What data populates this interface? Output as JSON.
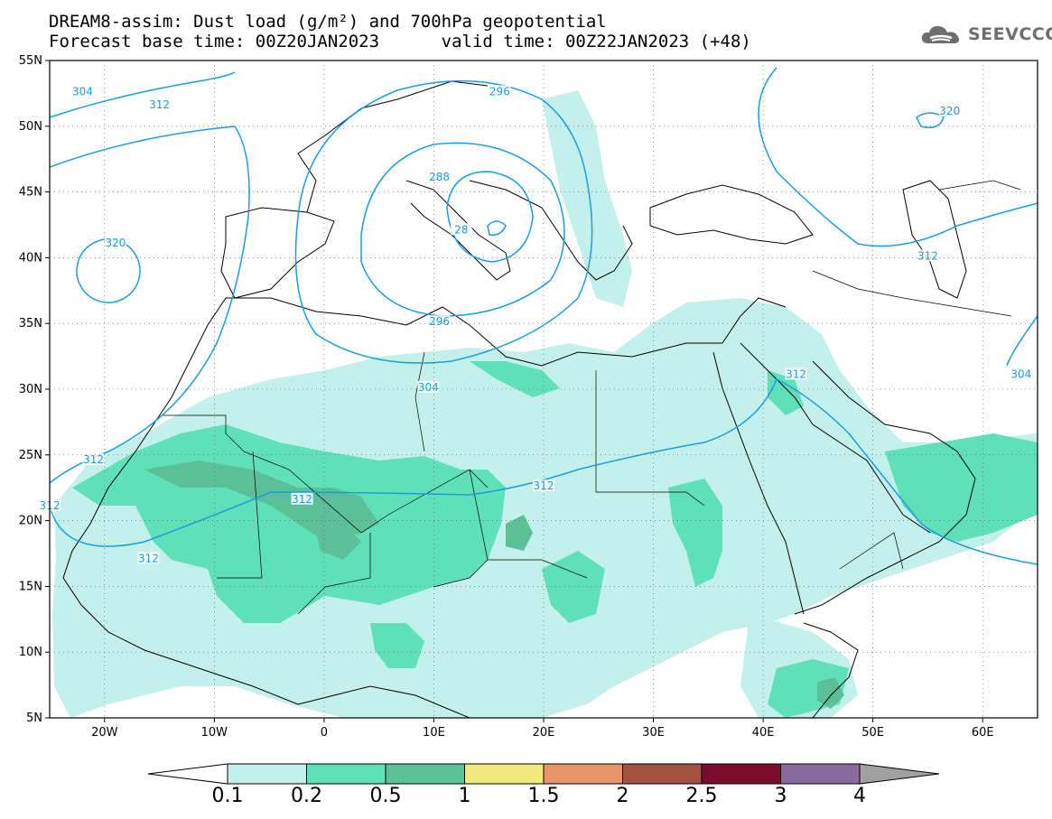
{
  "title": {
    "line1": "DREAM8-assim: Dust load (g/m²) and 700hPa geopotential",
    "line2": "Forecast base time: 00Z20JAN2023      valid time: 00Z22JAN2023 (+48)"
  },
  "logo": {
    "text": "SEEVCCC",
    "icon": "cloud-icon"
  },
  "map": {
    "lon_range": [
      -25,
      65
    ],
    "lat_range": [
      5,
      55
    ],
    "lat_ticks": [
      "5N",
      "10N",
      "15N",
      "20N",
      "25N",
      "30N",
      "35N",
      "40N",
      "45N",
      "50N",
      "55N"
    ],
    "lon_ticks": [
      "20W",
      "10W",
      "0",
      "10E",
      "20E",
      "30E",
      "40E",
      "50E",
      "60E"
    ],
    "contour_color": "#1a9de0",
    "contour_labels": [
      {
        "text": "304",
        "lon": -22,
        "lat": 52.5
      },
      {
        "text": "312",
        "lon": -15,
        "lat": 51.5
      },
      {
        "text": "296",
        "lon": 16,
        "lat": 52.5
      },
      {
        "text": "288",
        "lon": 10.5,
        "lat": 46
      },
      {
        "text": "28",
        "lon": 12.5,
        "lat": 42
      },
      {
        "text": "320",
        "lon": -19,
        "lat": 41
      },
      {
        "text": "296",
        "lon": 10.5,
        "lat": 35
      },
      {
        "text": "304",
        "lon": 9.5,
        "lat": 30
      },
      {
        "text": "312",
        "lon": 43,
        "lat": 31
      },
      {
        "text": "312",
        "lon": 55,
        "lat": 40
      },
      {
        "text": "320",
        "lon": 57,
        "lat": 51
      },
      {
        "text": "304",
        "lon": 63.5,
        "lat": 31
      },
      {
        "text": "312",
        "lon": -21,
        "lat": 24.5
      },
      {
        "text": "312",
        "lon": -2,
        "lat": 21.5
      },
      {
        "text": "312",
        "lon": -25,
        "lat": 21
      },
      {
        "text": "312",
        "lon": 20,
        "lat": 22.5
      },
      {
        "text": "312",
        "lon": -16,
        "lat": 17
      }
    ]
  },
  "colorbar": {
    "labels": [
      "0.1",
      "0.2",
      "0.5",
      "1",
      "1.5",
      "2",
      "2.5",
      "3",
      "4"
    ],
    "colors": [
      "#c3f0ea",
      "#5fe0b8",
      "#5cbf98",
      "#f2e97a",
      "#e8956a",
      "#a6503f",
      "#7b0d2c",
      "#8a6a9e",
      "#a0a0a0"
    ],
    "under_color": "#ffffff",
    "over_color": "#a0a0a0"
  }
}
